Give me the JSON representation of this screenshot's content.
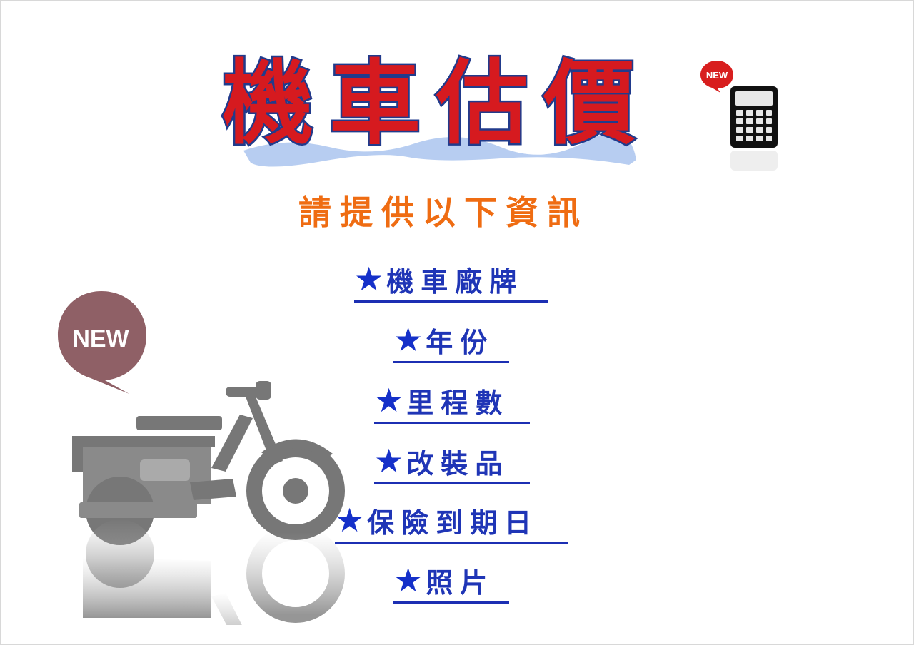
{
  "title": "機車估價",
  "subtitle": "請提供以下資訊",
  "new_badge_small": "NEW",
  "new_badge_big": "NEW",
  "star": "★",
  "items": [
    {
      "label": "機車廠牌"
    },
    {
      "label": "年份"
    },
    {
      "label": "里程數"
    },
    {
      "label": "改裝品"
    },
    {
      "label": "保險到期日"
    },
    {
      "label": "照片"
    }
  ],
  "colors": {
    "title_fill": "#d61a1f",
    "title_outline": "#213b8c",
    "subtitle": "#ef6c12",
    "item_text": "#1f35b6",
    "star": "#1530c9",
    "new_small_bubble": "#d81e1e",
    "new_big_bubble": "#8f6066",
    "scooter": "#7a7a7a"
  },
  "icons": {
    "calculator": "calculator-icon",
    "scooter": "scooter-icon",
    "bubble": "speech-bubble-icon"
  }
}
